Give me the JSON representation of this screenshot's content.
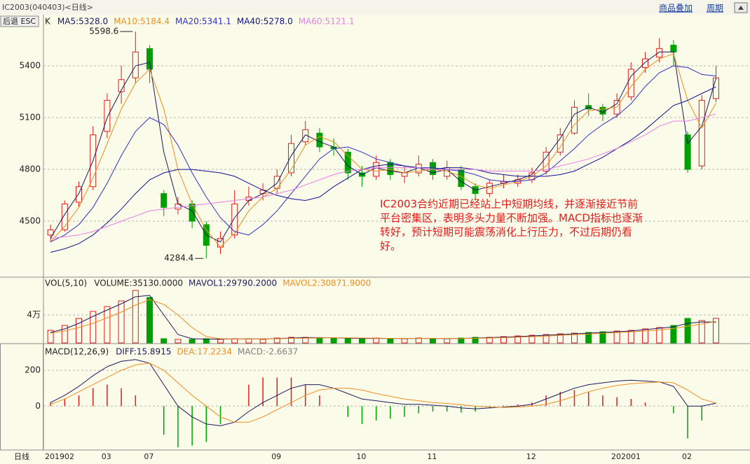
{
  "header": {
    "title": "IC2003(040403)<日线>",
    "links": [
      "商品叠加",
      "周期"
    ],
    "back_button": "后退 ESC",
    "period": "日线"
  },
  "chart_data": [
    {
      "type": "candlestick",
      "label": "K",
      "categories": [
        "201902",
        null,
        null,
        null,
        "03",
        null,
        null,
        "07",
        null,
        null,
        null,
        null,
        null,
        null,
        null,
        null,
        "09",
        null,
        null,
        null,
        null,
        null,
        "10",
        null,
        null,
        null,
        null,
        "11",
        null,
        null,
        null,
        null,
        null,
        null,
        "12",
        null,
        null,
        null,
        null,
        null,
        "202001",
        null,
        null,
        null,
        null,
        "02",
        null,
        null
      ],
      "open": [
        4420,
        4450,
        4610,
        4700,
        5020,
        5250,
        5330,
        5500,
        4660,
        4570,
        4600,
        4480,
        4350,
        4420,
        4620,
        4660,
        4690,
        4780,
        4960,
        5010,
        4930,
        4900,
        4780,
        4760,
        4840,
        4760,
        4780,
        4840,
        4760,
        4800,
        4700,
        4660,
        4720,
        4720,
        4740,
        4790,
        4900,
        5010,
        5170,
        5160,
        5120,
        5220,
        5390,
        5450,
        5520,
        5000,
        4820,
        5210
      ],
      "high": [
        4480,
        4620,
        4730,
        5050,
        5240,
        5400,
        5598.6,
        5520,
        4680,
        4640,
        4620,
        4500,
        4440,
        4680,
        4700,
        4720,
        4800,
        5000,
        5080,
        5040,
        4980,
        4920,
        4820,
        4880,
        4860,
        4820,
        4880,
        4860,
        4850,
        4820,
        4720,
        4740,
        4770,
        4770,
        4810,
        4930,
        5040,
        5200,
        5240,
        5180,
        5240,
        5420,
        5480,
        5560,
        5550,
        5020,
        5230,
        5400
      ],
      "low": [
        4380,
        4440,
        4580,
        4680,
        4980,
        5180,
        5300,
        5300,
        4530,
        4540,
        4460,
        4284.4,
        4310,
        4400,
        4590,
        4620,
        4660,
        4760,
        4940,
        4900,
        4880,
        4740,
        4700,
        4740,
        4740,
        4720,
        4760,
        4740,
        4740,
        4680,
        4620,
        4640,
        4690,
        4700,
        4720,
        4770,
        4880,
        5000,
        5110,
        5080,
        5100,
        5200,
        5360,
        5420,
        5400,
        4780,
        4800,
        5190
      ],
      "close": [
        4450,
        4600,
        4700,
        5000,
        5200,
        5320,
        5480,
        5380,
        4580,
        4600,
        4500,
        4360,
        4400,
        4600,
        4640,
        4680,
        4760,
        4950,
        5030,
        4930,
        4920,
        4780,
        4760,
        4840,
        4770,
        4780,
        4830,
        4770,
        4810,
        4700,
        4660,
        4720,
        4730,
        4740,
        4780,
        4900,
        5000,
        5160,
        5150,
        5120,
        5200,
        5380,
        5440,
        5500,
        5480,
        4800,
        5200,
        5330
      ],
      "up_color": "#e41b1b",
      "down_color": "#00a000",
      "series": [
        {
          "name": "MA5:5328.0",
          "color": "#1a1a60",
          "values": [
            4400,
            4540,
            4660,
            4850,
            5100,
            5260,
            5400,
            5420,
            4900,
            4600,
            4560,
            4420,
            4380,
            4520,
            4620,
            4660,
            4720,
            4880,
            5000,
            4960,
            4930,
            4820,
            4770,
            4810,
            4790,
            4780,
            4810,
            4780,
            4800,
            4730,
            4680,
            4700,
            4720,
            4740,
            4770,
            4870,
            4980,
            5120,
            5160,
            5130,
            5180,
            5340,
            5420,
            5480,
            5480,
            4950,
            5050,
            5328
          ]
        },
        {
          "name": "MA10:5184.4",
          "color": "#f08c1e",
          "values": [
            4380,
            4470,
            4580,
            4750,
            4950,
            5150,
            5300,
            5380,
            5150,
            4800,
            4600,
            4450,
            4350,
            4430,
            4560,
            4640,
            4690,
            4800,
            4940,
            4990,
            4960,
            4880,
            4800,
            4790,
            4800,
            4780,
            4790,
            4800,
            4790,
            4760,
            4710,
            4690,
            4710,
            4730,
            4760,
            4820,
            4930,
            5060,
            5140,
            5150,
            5160,
            5280,
            5380,
            5440,
            5470,
            5200,
            5040,
            5184.4
          ]
        },
        {
          "name": "MA20:5341.1",
          "color": "#3030c8",
          "values": [
            4380,
            4420,
            4480,
            4580,
            4720,
            4880,
            5020,
            5100,
            5060,
            4940,
            4780,
            4640,
            4520,
            4440,
            4420,
            4480,
            4560,
            4660,
            4760,
            4860,
            4920,
            4930,
            4900,
            4860,
            4840,
            4820,
            4810,
            4810,
            4800,
            4790,
            4770,
            4740,
            4730,
            4730,
            4740,
            4780,
            4850,
            4920,
            5000,
            5060,
            5110,
            5180,
            5280,
            5360,
            5400,
            5390,
            5350,
            5341.1
          ]
        },
        {
          "name": "MA40:5278.0",
          "color": "#101090",
          "values": [
            4320,
            4340,
            4370,
            4420,
            4490,
            4570,
            4660,
            4740,
            4780,
            4800,
            4800,
            4790,
            4780,
            4760,
            4720,
            4680,
            4650,
            4630,
            4620,
            4640,
            4700,
            4750,
            4800,
            4820,
            4830,
            4820,
            4810,
            4800,
            4810,
            4810,
            4800,
            4780,
            4770,
            4760,
            4760,
            4760,
            4770,
            4790,
            4830,
            4870,
            4920,
            4970,
            5030,
            5100,
            5170,
            5200,
            5240,
            5278
          ]
        },
        {
          "name": "MA60:5121.1",
          "color": "#e67ee6",
          "values": [
            4400,
            4410,
            4420,
            4440,
            4470,
            4500,
            4530,
            4560,
            4570,
            4580,
            4590,
            4600,
            4610,
            4620,
            4630,
            4640,
            4660,
            4680,
            4710,
            4740,
            4770,
            4790,
            4800,
            4810,
            4810,
            4810,
            4810,
            4800,
            4800,
            4800,
            4800,
            4790,
            4790,
            4790,
            4790,
            4800,
            4820,
            4840,
            4860,
            4890,
            4920,
            4960,
            5000,
            5050,
            5080,
            5080,
            5100,
            5121.1
          ]
        }
      ],
      "ylim": [
        4180,
        5692
      ],
      "yticks": [
        4500,
        4800,
        5100,
        5400
      ],
      "grid": true,
      "note": [
        "IC2003合约近期已经站上中短期均线，并逐渐接近节前",
        "平台密集区，表明多头力量不断加强。MACD指标也逐渐",
        "转好，预计短期可能震荡消化上行压力，不过后期仍看",
        "好。"
      ],
      "note_color": "#e41b1b"
    },
    {
      "type": "volume",
      "label": "VOL(5,10)",
      "series": [
        {
          "name": "VOLUME:35130.0000",
          "color": "#222222",
          "values": [
            18000,
            25000,
            35000,
            45000,
            52000,
            60000,
            75000,
            65000,
            6000,
            5000,
            5000,
            6000,
            5000,
            6000,
            6000,
            5000,
            7000,
            8000,
            8000,
            7000,
            7000,
            6000,
            6000,
            7000,
            6000,
            6000,
            7000,
            6000,
            6000,
            7000,
            8000,
            8000,
            9000,
            10000,
            11000,
            12000,
            13000,
            14000,
            15000,
            16000,
            17000,
            18000,
            20000,
            22000,
            25000,
            35000,
            32000,
            35130
          ]
        },
        {
          "name": "MAVOL1:29790.2000",
          "color": "#1a1a60",
          "values": [
            15000,
            20000,
            28000,
            38000,
            47000,
            56000,
            66000,
            68000,
            40000,
            12000,
            6000,
            5500,
            5500,
            5600,
            5800,
            5800,
            6200,
            7000,
            7600,
            7600,
            7400,
            6800,
            6400,
            6400,
            6400,
            6200,
            6400,
            6400,
            6200,
            6400,
            7000,
            7600,
            8200,
            9000,
            10000,
            11000,
            12000,
            13000,
            14000,
            15000,
            16000,
            17000,
            19000,
            21000,
            23000,
            28000,
            30000,
            29790.2
          ]
        },
        {
          "name": "MAVOL2:30871.9000",
          "color": "#f08c1e",
          "values": [
            14000,
            17000,
            22000,
            28000,
            36000,
            44000,
            54000,
            62000,
            55000,
            40000,
            22000,
            9000,
            6000,
            5600,
            5700,
            5700,
            6000,
            6500,
            6800,
            7200,
            7400,
            7200,
            7000,
            6700,
            6500,
            6400,
            6400,
            6400,
            6400,
            6300,
            6600,
            7000,
            7500,
            8200,
            9000,
            9800,
            10800,
            11800,
            12800,
            13800,
            14800,
            15800,
            17000,
            18500,
            20500,
            24000,
            27000,
            30871.9
          ]
        }
      ],
      "ylim": [
        0,
        93000
      ],
      "yticks": [
        {
          "value": 40000,
          "label": "4万"
        }
      ],
      "grid": true
    },
    {
      "type": "macd",
      "label": "MACD(12,26,9)",
      "series": [
        {
          "name": "DIFF:15.8915",
          "color": "#1a1a60",
          "values": [
            20,
            60,
            110,
            170,
            220,
            250,
            260,
            240,
            120,
            0,
            -60,
            -100,
            -110,
            -90,
            -30,
            20,
            60,
            100,
            120,
            120,
            100,
            70,
            40,
            30,
            20,
            10,
            10,
            5,
            0,
            -10,
            -15,
            -10,
            -5,
            0,
            10,
            40,
            70,
            100,
            120,
            130,
            140,
            145,
            140,
            135,
            110,
            0,
            0,
            15.8915
          ]
        },
        {
          "name": "DEA:17.2234",
          "color": "#f08c1e",
          "values": [
            10,
            40,
            80,
            120,
            160,
            200,
            230,
            240,
            200,
            130,
            60,
            0,
            -60,
            -90,
            -90,
            -60,
            -20,
            20,
            60,
            90,
            100,
            100,
            90,
            70,
            55,
            40,
            30,
            20,
            15,
            8,
            0,
            -5,
            -7,
            -5,
            0,
            10,
            30,
            55,
            80,
            100,
            115,
            125,
            130,
            135,
            130,
            90,
            40,
            17.2234
          ]
        },
        {
          "name": "MACD:-2.6637",
          "color": "#808080",
          "values": [
            20,
            40,
            60,
            100,
            120,
            100,
            60,
            0,
            -160,
            -230,
            -220,
            -200,
            -100,
            0,
            120,
            160,
            160,
            160,
            120,
            60,
            0,
            -60,
            -100,
            -80,
            -70,
            -60,
            -40,
            -30,
            -30,
            -36,
            -30,
            -10,
            4,
            10,
            20,
            60,
            80,
            90,
            80,
            60,
            50,
            40,
            20,
            0,
            -40,
            -180,
            -80,
            -2.6637
          ]
        }
      ],
      "up_color": "#e41b1b",
      "down_color": "#00a000",
      "ylim": [
        -245,
        345
      ],
      "yticks": [
        0,
        200
      ],
      "grid": true
    }
  ]
}
